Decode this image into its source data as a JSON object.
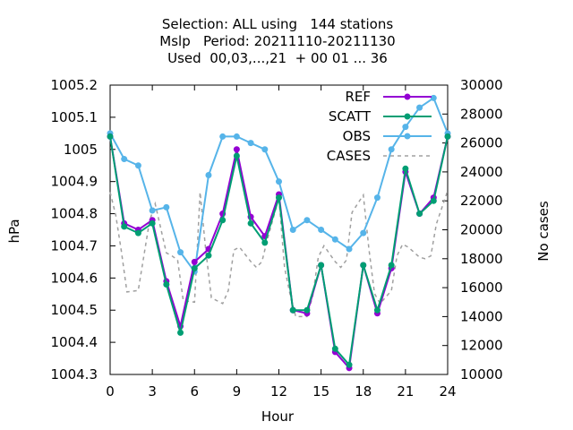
{
  "chart_data": {
    "type": "line",
    "title_lines": [
      "Selection: ALL using   144 stations",
      "Mslp   Period: 20211110-20211130",
      "Used  00,03,...,21  + 00 01 ... 36"
    ],
    "xlabel": "Hour",
    "ylabel": "hPa",
    "y2label": "No cases",
    "xlim": [
      0,
      24
    ],
    "ylim": [
      1004.3,
      1005.2
    ],
    "y2lim": [
      10000,
      30000
    ],
    "x_ticks": [
      0,
      3,
      6,
      9,
      12,
      15,
      18,
      21,
      24
    ],
    "y_ticks": [
      "1004.3",
      "1004.4",
      "1004.5",
      "1004.6",
      "1004.7",
      "1004.8",
      "1004.9",
      "1005",
      "1005.1",
      "1005.2"
    ],
    "y2_ticks": [
      "10000",
      "12000",
      "14000",
      "16000",
      "18000",
      "20000",
      "22000",
      "24000",
      "26000",
      "28000",
      "30000"
    ],
    "grid": false,
    "legend_position": "top-right",
    "x": [
      0,
      1,
      2,
      3,
      4,
      5,
      6,
      7,
      8,
      9,
      10,
      11,
      12,
      13,
      14,
      15,
      16,
      17,
      18,
      19,
      20,
      21,
      22,
      23,
      24
    ],
    "series": [
      {
        "name": "REF",
        "color": "#9400d3",
        "axis": "y",
        "style": "line-points",
        "values": [
          1005.04,
          1004.77,
          1004.75,
          1004.78,
          1004.59,
          1004.45,
          1004.65,
          1004.69,
          1004.8,
          1005.0,
          1004.79,
          1004.73,
          1004.86,
          1004.5,
          1004.49,
          1004.64,
          1004.37,
          1004.32,
          1004.64,
          1004.49,
          1004.63,
          1004.93,
          1004.8,
          1004.85,
          1005.04
        ]
      },
      {
        "name": "SCATT",
        "color": "#009e73",
        "axis": "y",
        "style": "line-points",
        "values": [
          1005.04,
          1004.76,
          1004.74,
          1004.77,
          1004.58,
          1004.43,
          1004.63,
          1004.67,
          1004.78,
          1004.98,
          1004.77,
          1004.71,
          1004.85,
          1004.5,
          1004.5,
          1004.64,
          1004.38,
          1004.33,
          1004.64,
          1004.5,
          1004.64,
          1004.94,
          1004.8,
          1004.84,
          1005.04
        ]
      },
      {
        "name": "OBS",
        "color": "#56b4e9",
        "axis": "y",
        "style": "line-points",
        "values": [
          1005.05,
          1004.97,
          1004.95,
          1004.81,
          1004.82,
          1004.68,
          1004.62,
          1004.92,
          1005.04,
          1005.04,
          1005.02,
          1005.0,
          1004.9,
          1004.75,
          1004.78,
          1004.75,
          1004.72,
          1004.69,
          1004.74,
          1004.85,
          1005.0,
          1005.07,
          1005.13,
          1005.16,
          1005.05
        ]
      },
      {
        "name": "CASES",
        "color": "#a0a0a0",
        "axis": "y2",
        "style": "dashed",
        "x": [
          0,
          0.4,
          0.8,
          1.2,
          2,
          2.4,
          2.8,
          3.2,
          4,
          4.4,
          4.8,
          5.2,
          6,
          6.4,
          6.8,
          7.2,
          8,
          8.4,
          8.8,
          9.2,
          10,
          10.4,
          10.8,
          11.2,
          12,
          12.4,
          12.8,
          13.2,
          14,
          14.4,
          14.8,
          15.2,
          16,
          16.4,
          16.8,
          17.2,
          18,
          18.4,
          18.8,
          19.2,
          20,
          20.4,
          20.8,
          21.2,
          22,
          22.4,
          22.8,
          23.2,
          24
        ],
        "values": [
          22600,
          21000,
          18500,
          15700,
          15800,
          18200,
          20600,
          21800,
          18400,
          18200,
          17900,
          15100,
          15000,
          22600,
          18600,
          15300,
          14900,
          15800,
          18600,
          18800,
          17800,
          17400,
          17800,
          19400,
          22200,
          17400,
          15500,
          14000,
          14000,
          15400,
          18100,
          18900,
          17800,
          17400,
          17900,
          21200,
          22400,
          18700,
          15600,
          14900,
          15800,
          18200,
          19000,
          18800,
          18100,
          18000,
          18200,
          20400,
          22700
        ]
      }
    ]
  }
}
